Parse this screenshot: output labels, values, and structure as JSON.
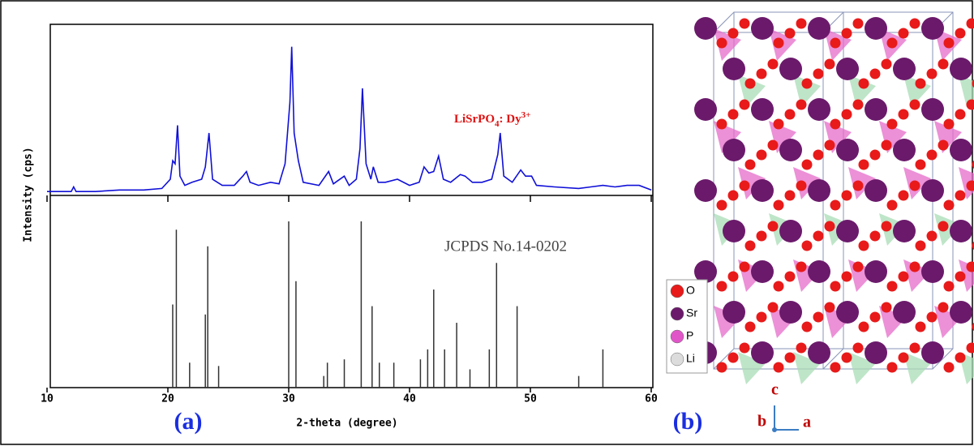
{
  "chart_data": [
    {
      "type": "line",
      "ylabel": "Intensity (cps)",
      "annotation": [
        "LiSrPO",
        "4",
        ": Dy",
        "3+"
      ],
      "xlim": [
        10,
        60
      ],
      "ylim": [
        0,
        100
      ],
      "series": [
        {
          "color": "#1010d8",
          "x": [
            10,
            12,
            12.2,
            12.4,
            14,
            16,
            18,
            19.5,
            20.2,
            20.4,
            20.6,
            20.8,
            21.0,
            21.4,
            22,
            22.8,
            23.1,
            23.4,
            23.7,
            24.5,
            25.5,
            26.2,
            26.5,
            26.8,
            27.5,
            28.5,
            29.2,
            29.7,
            29.9,
            30.1,
            30.25,
            30.45,
            30.8,
            31.2,
            32.5,
            33.3,
            33.7,
            34.6,
            35,
            35.6,
            35.9,
            36.1,
            36.4,
            36.8,
            37,
            37.4,
            38,
            39,
            40,
            40.8,
            41.2,
            41.6,
            42,
            42.4,
            42.8,
            43.4,
            44.2,
            44.6,
            45.2,
            46,
            46.8,
            47.3,
            47.5,
            47.8,
            48.5,
            49.2,
            49.6,
            50.1,
            50.5,
            52,
            54,
            55,
            56,
            57,
            58,
            59,
            60
          ],
          "values": [
            2,
            2,
            5,
            2,
            2,
            3,
            3,
            4,
            10,
            22,
            20,
            45,
            12,
            6,
            8,
            10,
            18,
            40,
            10,
            6,
            6,
            12,
            15,
            8,
            6,
            8,
            7,
            20,
            40,
            60,
            96,
            40,
            22,
            8,
            6,
            15,
            7,
            12,
            6,
            10,
            30,
            69,
            20,
            10,
            18,
            8,
            8,
            10,
            6,
            8,
            18,
            14,
            15,
            25,
            10,
            8,
            13,
            12,
            8,
            8,
            10,
            26,
            40,
            12,
            8,
            16,
            12,
            12,
            6,
            5,
            4,
            5,
            6,
            5,
            6,
            6,
            3
          ]
        }
      ]
    },
    {
      "type": "stick",
      "xlabel": "2-theta  (degree)",
      "annotation": "JCPDS No.14-0202",
      "xlim": [
        10,
        60
      ],
      "xticks": [
        10,
        20,
        30,
        40,
        50,
        60
      ],
      "ylim": [
        0,
        100
      ],
      "series": [
        {
          "color": "#333333",
          "x": [
            20.4,
            20.7,
            21.8,
            23.1,
            23.3,
            24.2,
            30,
            30.6,
            32.9,
            33.2,
            34.6,
            36,
            36.9,
            37.5,
            38.7,
            40.9,
            41.5,
            42,
            42.9,
            43.9,
            45,
            46.6,
            47.2,
            48.9,
            54,
            56
          ],
          "values": [
            50,
            95,
            15,
            44,
            85,
            13,
            100,
            64,
            7,
            15,
            17,
            100,
            49,
            15,
            15,
            17,
            23,
            59,
            23,
            39,
            11,
            23,
            75,
            49,
            7,
            23
          ]
        }
      ]
    }
  ],
  "panel_labels": [
    "(a)",
    "(b)"
  ],
  "structure": {
    "legend": [
      "O",
      "Sr",
      "P",
      "Li"
    ],
    "axes": [
      "c",
      "b",
      "a"
    ]
  }
}
